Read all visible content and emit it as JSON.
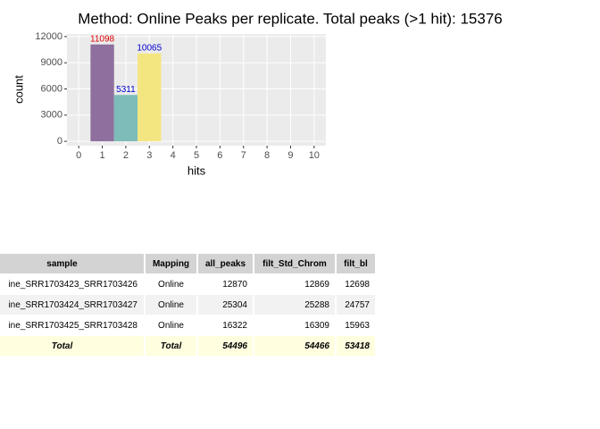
{
  "chart_data": {
    "type": "bar",
    "title": "Method: Online Peaks per replicate. Total peaks (>1 hit): 15376",
    "x_label": "hits",
    "y_label": "count",
    "x": [
      1,
      2,
      3
    ],
    "values": [
      11098,
      5311,
      10065
    ],
    "colors": [
      "#8e6f9e",
      "#7dbcb8",
      "#f3e681"
    ],
    "label_colors": [
      "#dd0000",
      "#0000cc",
      "#0000cc"
    ],
    "xlim": [
      -0.5,
      10.5
    ],
    "xticks": [
      0,
      1,
      2,
      3,
      4,
      5,
      6,
      7,
      8,
      9,
      10
    ],
    "ylim": [
      -500,
      12300
    ],
    "yticks": [
      0,
      3000,
      6000,
      9000,
      12000
    ],
    "grid": true
  },
  "table": {
    "columns": [
      "sample",
      "Mapping",
      "all_peaks",
      "filt_Std_Chrom",
      "filt_bl"
    ],
    "rows": [
      [
        "ine_SRR1703423_SRR1703426",
        "Online",
        12870,
        12869,
        12698
      ],
      [
        "ine_SRR1703424_SRR1703427",
        "Online",
        25304,
        25288,
        24757
      ],
      [
        "ine_SRR1703425_SRR1703428",
        "Online",
        16322,
        16309,
        15963
      ]
    ],
    "total": [
      "Total",
      "Total",
      54496,
      54466,
      53418
    ]
  }
}
